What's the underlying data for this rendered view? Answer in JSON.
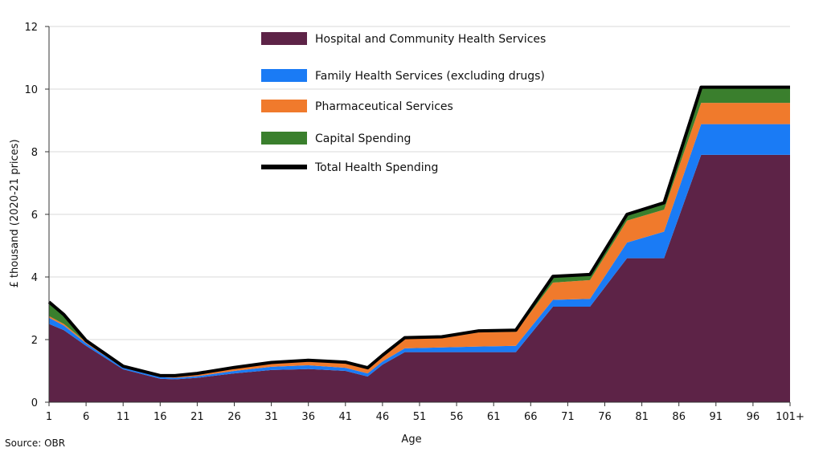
{
  "chart_data": {
    "type": "area",
    "stacked": true,
    "xlabel": "Age",
    "ylabel": "£ thousand (2020-21 prices)",
    "ylim": [
      0,
      12
    ],
    "yticks": [
      0,
      2,
      4,
      6,
      8,
      10,
      12
    ],
    "grid": "horizontal",
    "legend_position": "top-center",
    "x_tick_labels": [
      "1",
      "6",
      "11",
      "16",
      "21",
      "26",
      "31",
      "36",
      "41",
      "46",
      "51",
      "56",
      "61",
      "66",
      "71",
      "76",
      "81",
      "86",
      "91",
      "96",
      "101+"
    ],
    "x": [
      1,
      3,
      6,
      11,
      16,
      18,
      21,
      26,
      31,
      36,
      41,
      44,
      46,
      49,
      54,
      59,
      64,
      69,
      74,
      79,
      84,
      89,
      94,
      101
    ],
    "series": [
      {
        "name": "Hospital and Community Health Services",
        "color": "#5d2347",
        "values": [
          2.5,
          2.3,
          1.8,
          1.05,
          0.75,
          0.73,
          0.78,
          0.92,
          1.03,
          1.06,
          1.0,
          0.82,
          1.2,
          1.6,
          1.6,
          1.6,
          1.6,
          3.05,
          3.05,
          4.6,
          4.6,
          7.9,
          7.9,
          7.9
        ]
      },
      {
        "name": "Family Health Services (excluding drugs)",
        "color": "#1a7bf5",
        "values": [
          0.2,
          0.15,
          0.08,
          0.05,
          0.05,
          0.05,
          0.05,
          0.08,
          0.1,
          0.12,
          0.1,
          0.1,
          0.1,
          0.12,
          0.15,
          0.18,
          0.2,
          0.22,
          0.25,
          0.5,
          0.85,
          0.98,
          0.98,
          0.98
        ]
      },
      {
        "name": "Pharmaceutical Services",
        "color": "#f07a2c",
        "values": [
          0.05,
          0.05,
          0.04,
          0.03,
          0.03,
          0.04,
          0.05,
          0.07,
          0.1,
          0.12,
          0.14,
          0.14,
          0.16,
          0.3,
          0.3,
          0.45,
          0.45,
          0.55,
          0.6,
          0.7,
          0.7,
          0.68,
          0.68,
          0.68
        ]
      },
      {
        "name": "Capital Spending",
        "color": "#3a7f2d",
        "values": [
          0.45,
          0.3,
          0.05,
          0.02,
          0.02,
          0.03,
          0.04,
          0.04,
          0.04,
          0.04,
          0.04,
          0.04,
          0.04,
          0.04,
          0.04,
          0.05,
          0.05,
          0.2,
          0.18,
          0.2,
          0.22,
          0.5,
          0.5,
          0.5
        ]
      }
    ],
    "total": {
      "name": "Total Health Spending",
      "color": "#000000",
      "values": [
        3.2,
        2.8,
        1.97,
        1.15,
        0.85,
        0.85,
        0.92,
        1.11,
        1.27,
        1.34,
        1.28,
        1.1,
        1.5,
        2.06,
        2.09,
        2.28,
        2.3,
        4.02,
        4.08,
        6.0,
        6.37,
        10.06,
        10.06,
        10.06
      ]
    }
  },
  "source": "Source: OBR"
}
